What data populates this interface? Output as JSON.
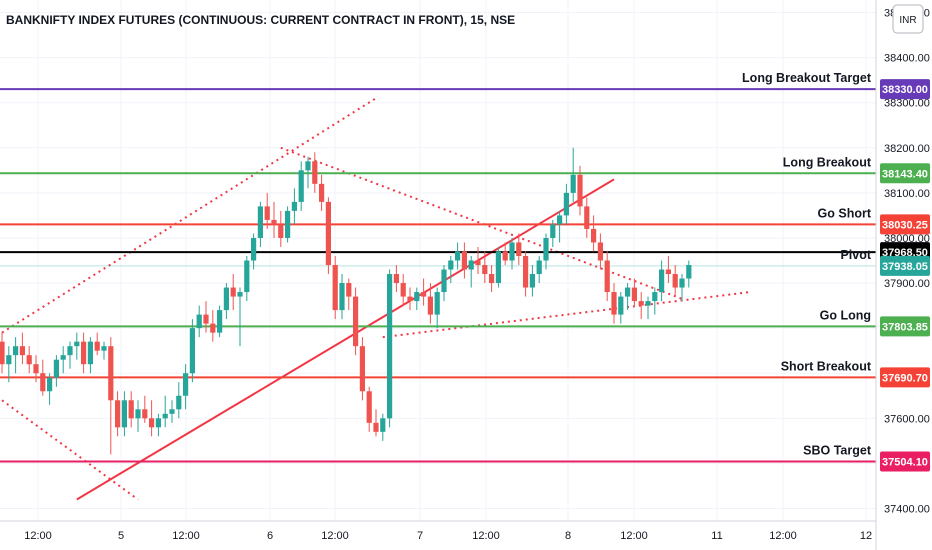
{
  "chart_data": {
    "type": "candlestick",
    "title": "BANKNIFTY INDEX FUTURES (CONTINUOUS: CURRENT CONTRACT IN FRONT), 15, NSE",
    "currency": "INR",
    "ylim": [
      37390,
      38510
    ],
    "y_ticks": [
      {
        "value": 37400,
        "label": "37400.00"
      },
      {
        "value": 37500,
        "label": "37500.00"
      },
      {
        "value": 37600,
        "label": "37600.00"
      },
      {
        "value": 37700,
        "label": "37700.00"
      },
      {
        "value": 37800,
        "label": "37800.00"
      },
      {
        "value": 37900,
        "label": "37900.00"
      },
      {
        "value": 38000,
        "label": "38000.00"
      },
      {
        "value": 38100,
        "label": "38100.00"
      },
      {
        "value": 38200,
        "label": "38200.00"
      },
      {
        "value": 38300,
        "label": "38300.00"
      },
      {
        "value": 38400,
        "label": "38400.00"
      },
      {
        "value": 38500,
        "label": "38500.00"
      }
    ],
    "x_ticks": [
      "12:00",
      "5",
      "12:00",
      "6",
      "12:00",
      "7",
      "12:00",
      "8",
      "12:00",
      "11",
      "12:00",
      "12"
    ],
    "colors": {
      "up": "#26a69a",
      "down": "#ef5350",
      "trend": "#f23645",
      "pivot": "#000000",
      "target_long": "#673ab7",
      "green": "#4caf50",
      "red": "#f44336",
      "pink": "#e91e63"
    },
    "levels": [
      {
        "name": "Long Breakout Target",
        "value": 38330.0,
        "tag": "38330.00",
        "color": "#673ab7"
      },
      {
        "name": "Long Breakout",
        "value": 38143.4,
        "tag": "38143.40",
        "color": "#4caf50"
      },
      {
        "name": "Go Short",
        "value": 38030.25,
        "tag": "38030.25",
        "color": "#f44336"
      },
      {
        "name": "",
        "value": 37968.5,
        "tag": "37968.50",
        "color": "#000000",
        "current": true
      },
      {
        "name": "Pivot",
        "value": 37938.05,
        "tag": "37938.05",
        "color": "#26a69a"
      },
      {
        "name": "Go Long",
        "value": 37803.85,
        "tag": "37803.85",
        "color": "#4caf50"
      },
      {
        "name": "Short Breakout",
        "value": 37690.7,
        "tag": "37690.70",
        "color": "#f44336"
      },
      {
        "name": "SBO Target",
        "value": 37504.1,
        "tag": "37504.10",
        "color": "#e91e63"
      }
    ],
    "candles": [
      [
        37770,
        37790,
        37700,
        37720
      ],
      [
        37720,
        37760,
        37680,
        37740
      ],
      [
        37740,
        37780,
        37700,
        37760
      ],
      [
        37760,
        37790,
        37720,
        37740
      ],
      [
        37740,
        37760,
        37700,
        37720
      ],
      [
        37720,
        37740,
        37680,
        37700
      ],
      [
        37700,
        37730,
        37650,
        37660
      ],
      [
        37660,
        37700,
        37630,
        37690
      ],
      [
        37690,
        37740,
        37670,
        37730
      ],
      [
        37730,
        37760,
        37700,
        37740
      ],
      [
        37740,
        37770,
        37710,
        37760
      ],
      [
        37760,
        37790,
        37730,
        37770
      ],
      [
        37770,
        37790,
        37700,
        37720
      ],
      [
        37720,
        37780,
        37700,
        37770
      ],
      [
        37770,
        37790,
        37740,
        37750
      ],
      [
        37750,
        37770,
        37730,
        37760
      ],
      [
        37760,
        37780,
        37520,
        37640
      ],
      [
        37640,
        37660,
        37560,
        37580
      ],
      [
        37580,
        37660,
        37560,
        37640
      ],
      [
        37640,
        37660,
        37580,
        37600
      ],
      [
        37600,
        37640,
        37570,
        37620
      ],
      [
        37620,
        37650,
        37590,
        37600
      ],
      [
        37600,
        37640,
        37560,
        37580
      ],
      [
        37580,
        37610,
        37560,
        37600
      ],
      [
        37600,
        37650,
        37580,
        37610
      ],
      [
        37610,
        37640,
        37590,
        37620
      ],
      [
        37620,
        37680,
        37600,
        37650
      ],
      [
        37650,
        37720,
        37620,
        37700
      ],
      [
        37700,
        37820,
        37680,
        37800
      ],
      [
        37800,
        37850,
        37780,
        37830
      ],
      [
        37830,
        37860,
        37790,
        37810
      ],
      [
        37810,
        37840,
        37770,
        37790
      ],
      [
        37790,
        37850,
        37780,
        37840
      ],
      [
        37840,
        37900,
        37820,
        37890
      ],
      [
        37890,
        37920,
        37840,
        37870
      ],
      [
        37870,
        37890,
        37760,
        37880
      ],
      [
        37880,
        37960,
        37860,
        37950
      ],
      [
        37950,
        38010,
        37930,
        38000
      ],
      [
        38000,
        38080,
        37980,
        38070
      ],
      [
        38070,
        38100,
        38020,
        38040
      ],
      [
        38040,
        38080,
        38000,
        38030
      ],
      [
        38030,
        38060,
        37980,
        38000
      ],
      [
        38000,
        38070,
        37990,
        38060
      ],
      [
        38060,
        38110,
        38030,
        38080
      ],
      [
        38080,
        38170,
        38060,
        38150
      ],
      [
        38150,
        38180,
        38110,
        38170
      ],
      [
        38170,
        38190,
        38100,
        38120
      ],
      [
        38120,
        38140,
        38060,
        38080
      ],
      [
        38080,
        38090,
        37920,
        37940
      ],
      [
        37940,
        37960,
        37820,
        37840
      ],
      [
        37840,
        37920,
        37820,
        37900
      ],
      [
        37900,
        37910,
        37840,
        37870
      ],
      [
        37870,
        37890,
        37740,
        37760
      ],
      [
        37760,
        37780,
        37640,
        37660
      ],
      [
        37660,
        37670,
        37570,
        37590
      ],
      [
        37590,
        37620,
        37560,
        37570
      ],
      [
        37570,
        37610,
        37550,
        37600
      ],
      [
        37600,
        37930,
        37580,
        37920
      ],
      [
        37920,
        37940,
        37880,
        37900
      ],
      [
        37900,
        37920,
        37850,
        37870
      ],
      [
        37870,
        37890,
        37840,
        37860
      ],
      [
        37860,
        37890,
        37840,
        37880
      ],
      [
        37880,
        37910,
        37850,
        37870
      ],
      [
        37870,
        37900,
        37810,
        37830
      ],
      [
        37830,
        37890,
        37800,
        37880
      ],
      [
        37880,
        37940,
        37860,
        37930
      ],
      [
        37930,
        37960,
        37900,
        37950
      ],
      [
        37950,
        37990,
        37930,
        37970
      ],
      [
        37970,
        37990,
        37910,
        37930
      ],
      [
        37930,
        37960,
        37890,
        37950
      ],
      [
        37950,
        37980,
        37920,
        37940
      ],
      [
        37940,
        37970,
        37900,
        37920
      ],
      [
        37920,
        37940,
        37880,
        37900
      ],
      [
        37900,
        37980,
        37890,
        37970
      ],
      [
        37970,
        37990,
        37940,
        37950
      ],
      [
        37950,
        38000,
        37930,
        37990
      ],
      [
        37990,
        38010,
        37940,
        37960
      ],
      [
        37960,
        37970,
        37870,
        37890
      ],
      [
        37890,
        37940,
        37870,
        37920
      ],
      [
        37920,
        37960,
        37900,
        37950
      ],
      [
        37950,
        38010,
        37930,
        38000
      ],
      [
        38000,
        38040,
        37980,
        38030
      ],
      [
        38030,
        38060,
        37990,
        38050
      ],
      [
        38050,
        38120,
        38030,
        38100
      ],
      [
        38100,
        38200,
        38080,
        38140
      ],
      [
        38140,
        38160,
        38050,
        38070
      ],
      [
        38070,
        38090,
        38000,
        38020
      ],
      [
        38020,
        38050,
        37970,
        37990
      ],
      [
        37990,
        38010,
        37930,
        37950
      ],
      [
        37950,
        37970,
        37860,
        37880
      ],
      [
        37880,
        37900,
        37810,
        37830
      ],
      [
        37830,
        37880,
        37810,
        37870
      ],
      [
        37870,
        37900,
        37840,
        37890
      ],
      [
        37890,
        37910,
        37850,
        37860
      ],
      [
        37860,
        37880,
        37820,
        37850
      ],
      [
        37850,
        37870,
        37820,
        37860
      ],
      [
        37860,
        37890,
        37830,
        37880
      ],
      [
        37880,
        37950,
        37860,
        37930
      ],
      [
        37930,
        37960,
        37900,
        37920
      ],
      [
        37920,
        37940,
        37870,
        37890
      ],
      [
        37890,
        37920,
        37860,
        37910
      ],
      [
        37910,
        37950,
        37890,
        37940
      ]
    ],
    "trendlines": [
      {
        "style": "dotted",
        "points": [
          [
            0,
            37790
          ],
          [
            55,
            38310
          ]
        ]
      },
      {
        "style": "dotted",
        "points": [
          [
            0,
            37640
          ],
          [
            20,
            37420
          ]
        ]
      },
      {
        "style": "dotted",
        "points": [
          [
            41,
            38200
          ],
          [
            100,
            37865
          ]
        ]
      },
      {
        "style": "dotted",
        "points": [
          [
            56,
            37780
          ],
          [
            110,
            37880
          ]
        ]
      },
      {
        "style": "solid",
        "points": [
          [
            11,
            37420
          ],
          [
            90,
            38130
          ]
        ]
      }
    ]
  }
}
